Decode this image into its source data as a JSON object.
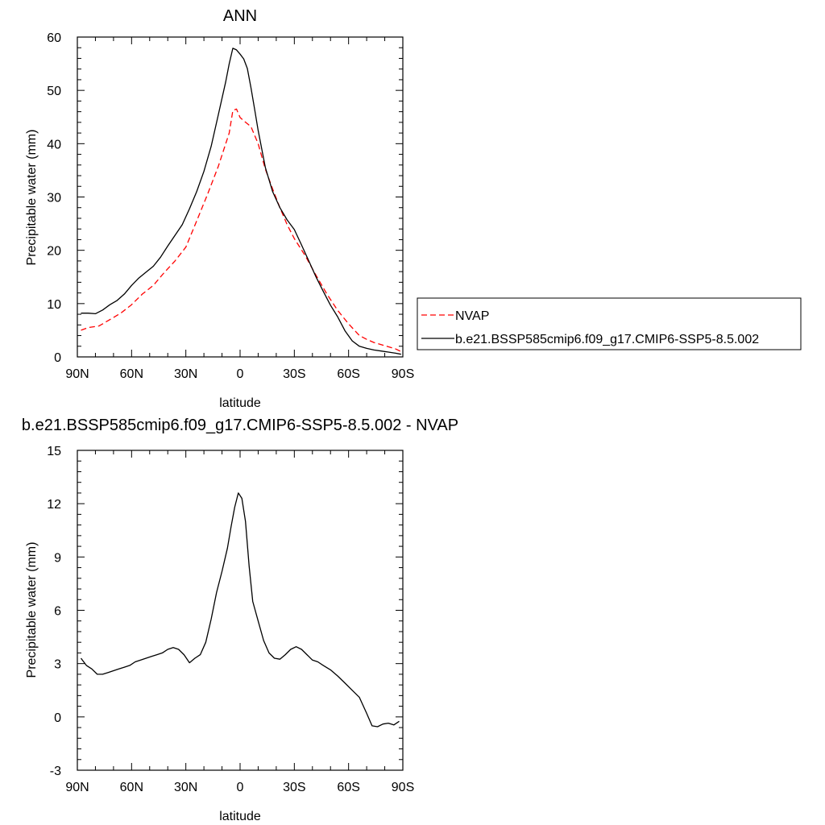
{
  "chart_data": [
    {
      "type": "line",
      "title": "ANN",
      "xlabel": "latitude",
      "ylabel": "Precipitable water (mm)",
      "xlim": [
        90,
        -90
      ],
      "ylim": [
        0,
        60
      ],
      "xticks": [
        90,
        60,
        30,
        0,
        -30,
        -60,
        -90
      ],
      "xtick_labels": [
        "90N",
        "60N",
        "30N",
        "0",
        "30S",
        "60S",
        "90S"
      ],
      "yticks": [
        0,
        10,
        20,
        30,
        40,
        50,
        60
      ],
      "ytick_labels": [
        "0",
        "10",
        "20",
        "30",
        "40",
        "50",
        "60"
      ],
      "grid": false,
      "legend_position": "outside-right",
      "series": [
        {
          "name": "NVAP",
          "color": "#ff0000",
          "dash": "dashed",
          "x": [
            88,
            84,
            78,
            72,
            66,
            60,
            54,
            48,
            42,
            36,
            30,
            24,
            18,
            12,
            6,
            4,
            2,
            0,
            -2,
            -6,
            -10,
            -14,
            -18,
            -22,
            -26,
            -30,
            -36,
            -42,
            -48,
            -54,
            -60,
            -66,
            -70,
            -74,
            -78,
            -82,
            -86,
            -89
          ],
          "y": [
            5.0,
            5.5,
            5.8,
            7.0,
            8.2,
            9.8,
            11.8,
            13.4,
            15.8,
            18.0,
            20.6,
            25.5,
            30.5,
            35.8,
            42.0,
            46.2,
            46.5,
            44.9,
            44.3,
            43.2,
            40.0,
            35.2,
            31.5,
            28.0,
            24.8,
            22.2,
            19.0,
            15.3,
            11.8,
            8.7,
            6.2,
            4.0,
            3.3,
            2.7,
            2.3,
            1.9,
            1.5,
            1.0
          ]
        },
        {
          "name": "b.e21.BSSP585cmip6.f09_g17.CMIP6-SSP5-8.5.002",
          "color": "#000000",
          "dash": "solid",
          "x": [
            88,
            84,
            80,
            76,
            72,
            68,
            64,
            60,
            56,
            52,
            48,
            44,
            40,
            36,
            32,
            28,
            24,
            20,
            16,
            12,
            8,
            6,
            4,
            2,
            0,
            -2,
            -4,
            -6,
            -8,
            -10,
            -14,
            -18,
            -22,
            -26,
            -30,
            -34,
            -38,
            -42,
            -46,
            -50,
            -54,
            -58,
            -62,
            -66,
            -70,
            -74,
            -78,
            -82,
            -86,
            -89
          ],
          "y": [
            8.2,
            8.2,
            8.1,
            8.8,
            9.8,
            10.6,
            11.8,
            13.4,
            14.8,
            15.9,
            17.0,
            18.7,
            20.8,
            22.8,
            24.8,
            27.8,
            31.0,
            34.8,
            39.5,
            45.5,
            51.5,
            55.0,
            57.9,
            57.6,
            56.8,
            55.9,
            54.1,
            50.5,
            46.5,
            42.5,
            35.5,
            31.0,
            28.0,
            25.7,
            23.9,
            21.0,
            18.0,
            15.0,
            12.3,
            9.7,
            7.5,
            4.9,
            3.0,
            2.0,
            1.6,
            1.3,
            1.1,
            0.9,
            0.7,
            0.5
          ]
        }
      ]
    },
    {
      "type": "line",
      "title": "b.e21.BSSP585cmip6.f09_g17.CMIP6-SSP5-8.5.002 - NVAP",
      "xlabel": "latitude",
      "ylabel": "Precipitable water (mm)",
      "xlim": [
        90,
        -90
      ],
      "ylim": [
        -3,
        15
      ],
      "xticks": [
        90,
        60,
        30,
        0,
        -30,
        -60,
        -90
      ],
      "xtick_labels": [
        "90N",
        "60N",
        "30N",
        "0",
        "30S",
        "60S",
        "90S"
      ],
      "yticks": [
        -3,
        0,
        3,
        6,
        9,
        12,
        15
      ],
      "ytick_labels": [
        "-3",
        "0",
        "3",
        "6",
        "9",
        "12",
        "15"
      ],
      "grid": false,
      "series": [
        {
          "color": "#000000",
          "dash": "solid",
          "x": [
            88,
            85,
            82,
            79,
            76,
            73,
            70,
            67,
            64,
            61,
            58,
            55,
            52,
            49,
            46,
            43,
            40,
            37,
            34,
            31,
            28,
            25,
            22,
            19,
            16,
            13,
            10,
            7,
            5,
            3,
            1,
            -1,
            -3,
            -5,
            -7,
            -10,
            -13,
            -16,
            -19,
            -22,
            -25,
            -28,
            -31,
            -34,
            -37,
            -40,
            -43,
            -46,
            -50,
            -54,
            -58,
            -62,
            -66,
            -70,
            -73,
            -76,
            -79,
            -82,
            -85,
            -88
          ],
          "y": [
            3.3,
            2.9,
            2.7,
            2.4,
            2.4,
            2.5,
            2.6,
            2.7,
            2.8,
            2.9,
            3.1,
            3.2,
            3.3,
            3.4,
            3.5,
            3.6,
            3.8,
            3.9,
            3.8,
            3.5,
            3.05,
            3.3,
            3.5,
            4.2,
            5.5,
            7.0,
            8.2,
            9.5,
            10.7,
            11.8,
            12.6,
            12.3,
            11.0,
            8.5,
            6.5,
            5.4,
            4.3,
            3.6,
            3.3,
            3.25,
            3.5,
            3.8,
            3.95,
            3.8,
            3.5,
            3.2,
            3.1,
            2.9,
            2.65,
            2.3,
            1.9,
            1.5,
            1.1,
            0.2,
            -0.5,
            -0.55,
            -0.4,
            -0.35,
            -0.45,
            -0.25
          ]
        }
      ]
    }
  ]
}
